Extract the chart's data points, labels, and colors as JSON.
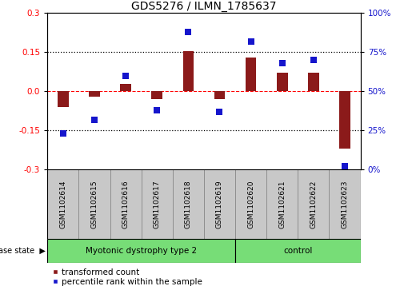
{
  "title": "GDS5276 / ILMN_1785637",
  "samples": [
    "GSM1102614",
    "GSM1102615",
    "GSM1102616",
    "GSM1102617",
    "GSM1102618",
    "GSM1102619",
    "GSM1102620",
    "GSM1102621",
    "GSM1102622",
    "GSM1102623"
  ],
  "red_values": [
    -0.06,
    -0.02,
    0.03,
    -0.03,
    0.155,
    -0.03,
    0.13,
    0.07,
    0.07,
    -0.22
  ],
  "blue_pct": [
    23,
    32,
    60,
    38,
    88,
    37,
    82,
    68,
    70,
    2
  ],
  "ylim_left": [
    -0.3,
    0.3
  ],
  "ylim_right": [
    0,
    100
  ],
  "yticks_left": [
    -0.3,
    -0.15,
    0.0,
    0.15,
    0.3
  ],
  "yticks_right": [
    0,
    25,
    50,
    75,
    100
  ],
  "hlines_dotted": [
    -0.15,
    0.15
  ],
  "hline_red_dash": 0.0,
  "bar_color": "#8B1A1A",
  "dot_color": "#1515CC",
  "disease_groups": [
    {
      "label": "Myotonic dystrophy type 2",
      "n_samples": 6
    },
    {
      "label": "control",
      "n_samples": 4
    }
  ],
  "group_color": "#77DD77",
  "sample_box_color": "#C8C8C8",
  "label_transformed": "transformed count",
  "label_percentile": "percentile rank within the sample",
  "disease_state_label": "disease state",
  "bar_width": 0.35,
  "dot_size": 40,
  "title_fontsize": 10,
  "tick_fontsize": 7.5,
  "sample_fontsize": 6.5,
  "legend_fontsize": 7.5,
  "group_fontsize": 7.5
}
